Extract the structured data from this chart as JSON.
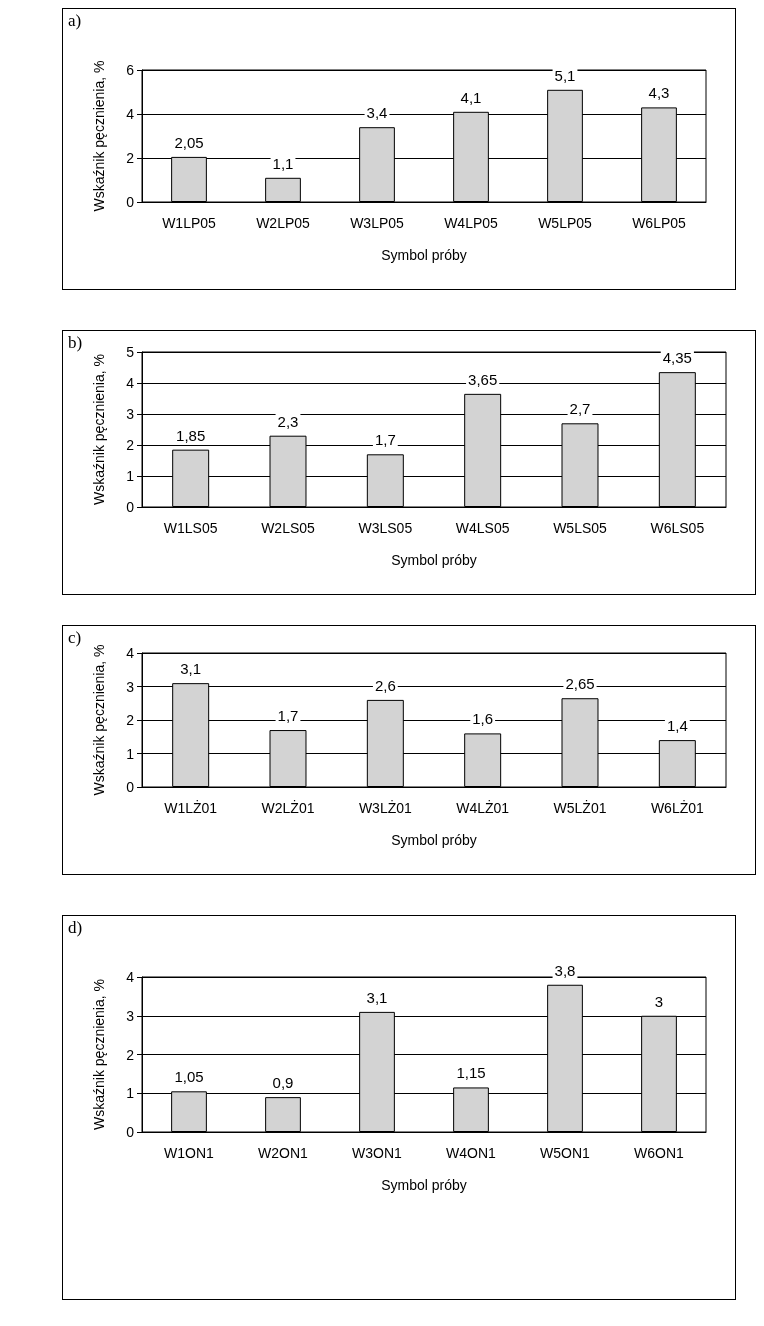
{
  "chart_data": [
    {
      "type": "bar",
      "title": "a)",
      "ylabel": "Wskaźnik pęcznienia, %",
      "xlabel": "Symbol próby",
      "categories": [
        "W1LP05",
        "W2LP05",
        "W3LP05",
        "W4LP05",
        "W5LP05",
        "W6LP05"
      ],
      "values": [
        2.05,
        1.1,
        3.4,
        4.1,
        5.1,
        4.3
      ],
      "value_labels": [
        "2,05",
        "1,1",
        "3,4",
        "4,1",
        "5,1",
        "4,3"
      ],
      "color": "#d3d3d3",
      "ylim": [
        0,
        6
      ],
      "yticks": [
        0,
        2,
        4,
        6
      ],
      "grid": "y"
    },
    {
      "type": "bar",
      "title": "b)",
      "ylabel": "Wskaźnik pęcznienia, %",
      "xlabel": "Symbol próby",
      "categories": [
        "W1LS05",
        "W2LS05",
        "W3LS05",
        "W4LS05",
        "W5LS05",
        "W6LS05"
      ],
      "values": [
        1.85,
        2.3,
        1.7,
        3.65,
        2.7,
        4.35
      ],
      "value_labels": [
        "1,85",
        "2,3",
        "1,7",
        "3,65",
        "2,7",
        "4,35"
      ],
      "color": "#d3d3d3",
      "ylim": [
        0,
        5
      ],
      "yticks": [
        0,
        1,
        2,
        3,
        4,
        5
      ],
      "grid": "y"
    },
    {
      "type": "bar",
      "title": "c)",
      "ylabel": "Wskaźnik pęcznienia, %",
      "xlabel": "Symbol próby",
      "categories": [
        "W1LŻ01",
        "W2LŻ01",
        "W3LŻ01",
        "W4LŻ01",
        "W5LŻ01",
        "W6LŻ01"
      ],
      "values": [
        3.1,
        1.7,
        2.6,
        1.6,
        2.65,
        1.4
      ],
      "value_labels": [
        "3,1",
        "1,7",
        "2,6",
        "1,6",
        "2,65",
        "1,4"
      ],
      "color": "#d3d3d3",
      "ylim": [
        0,
        4
      ],
      "yticks": [
        0,
        1,
        2,
        3,
        4
      ],
      "grid": "y"
    },
    {
      "type": "bar",
      "title": "d)",
      "ylabel": "Wskaźnik pęcznienia, %",
      "xlabel": "Symbol próby",
      "categories": [
        "W1ON1",
        "W2ON1",
        "W3ON1",
        "W4ON1",
        "W5ON1",
        "W6ON1"
      ],
      "values": [
        1.05,
        0.9,
        3.1,
        1.15,
        3.8,
        3
      ],
      "value_labels": [
        "1,05",
        "0,9",
        "3,1",
        "1,15",
        "3,8",
        "3"
      ],
      "color": "#d3d3d3",
      "ylim": [
        0,
        4
      ],
      "yticks": [
        0,
        1,
        2,
        3,
        4
      ],
      "grid": "y"
    }
  ]
}
